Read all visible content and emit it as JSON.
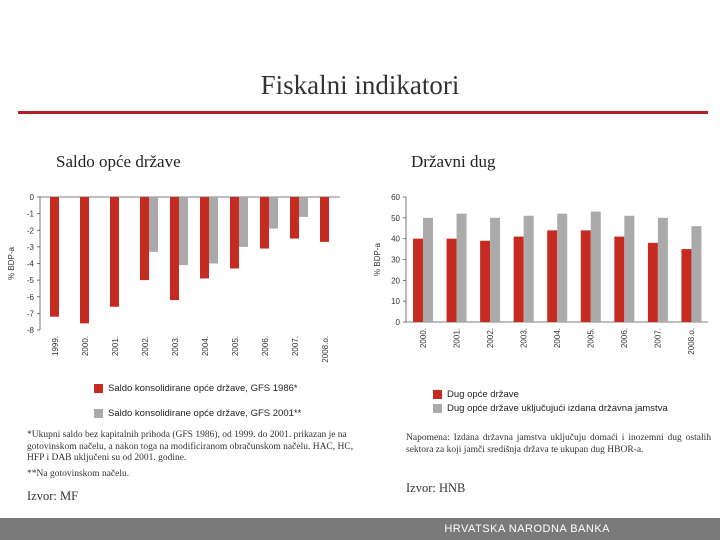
{
  "title": "Fiskalni indikatori",
  "colors": {
    "red": "#c62b22",
    "grey": "#aaaaaa",
    "accent": "#b21f24",
    "footer": "#7a7a7a"
  },
  "left": {
    "subtitle": "Saldo opće države",
    "note1": "*Ukupni saldo bez kapitalnih prihoda (GFS 1986), od 1999. do 2001. prikazan je na gotovinskom načelu, a nakon toga na modificiranom obračunskom načelu. HAC, HC, HFP i DAB uključeni su od 2001. godine.",
    "note2": "**Na gotovinskom načelu.",
    "source": "Izvor: MF"
  },
  "right": {
    "subtitle": "Državni dug",
    "note": "Napomena: Izdana državna jamstva uključuju domaći i inozemni dug ostalih sektora za koji jamči središnja država te ukupan dug HBOR-a.",
    "source": "Izvor: HNB"
  },
  "footer": "HRVATSKA NARODNA BANKA",
  "chart_data": [
    {
      "type": "bar",
      "title": "Saldo opće države",
      "ylabel": "% BDP-a",
      "ylim": [
        -8,
        0
      ],
      "yticks": [
        0,
        -1,
        -2,
        -3,
        -4,
        -5,
        -6,
        -7,
        -8
      ],
      "categories": [
        "1999.",
        "2000.",
        "2001.",
        "2002.",
        "2003.",
        "2004.",
        "2005.",
        "2006.",
        "2007.",
        "2008.o."
      ],
      "series": [
        {
          "name": "Saldo konsolidirane opće države, GFS 1986*",
          "color": "#c62b22",
          "values": [
            -7.2,
            -7.6,
            -6.6,
            -5.0,
            -6.2,
            -4.9,
            -4.3,
            -3.1,
            -2.5,
            -2.7
          ]
        },
        {
          "name": "Saldo konsolidirane opće države, GFS 2001**",
          "color": "#aaaaaa",
          "values": [
            null,
            null,
            null,
            -3.3,
            -4.1,
            -4.0,
            -3.0,
            -1.9,
            -1.2,
            null
          ]
        }
      ]
    },
    {
      "type": "bar",
      "title": "Državni dug",
      "ylabel": "% BDP-a",
      "ylim": [
        0,
        60
      ],
      "yticks": [
        0,
        10,
        20,
        30,
        40,
        50,
        60
      ],
      "categories": [
        "2000.",
        "2001.",
        "2002.",
        "2003.",
        "2004.",
        "2005.",
        "2006.",
        "2007.",
        "2008.o."
      ],
      "series": [
        {
          "name": "Dug opće države",
          "color": "#c62b22",
          "values": [
            40,
            40,
            39,
            41,
            44,
            44,
            41,
            38,
            35
          ]
        },
        {
          "name": "Dug opće države uključujući izdana državna jamstva",
          "color": "#aaaaaa",
          "values": [
            50,
            52,
            50,
            51,
            52,
            53,
            51,
            50,
            46
          ]
        }
      ]
    }
  ]
}
